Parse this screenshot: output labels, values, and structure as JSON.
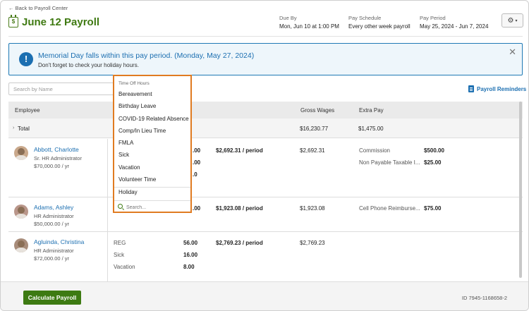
{
  "header": {
    "back_link": "← Back to Payroll Center",
    "title": "June 12 Payroll",
    "title_icon": "$",
    "due_by_label": "Due By",
    "due_by_value": "Mon, Jun 10 at 1:00 PM",
    "schedule_label": "Pay Schedule",
    "schedule_value": "Every other week payroll",
    "period_label": "Pay Period",
    "period_value": "May 25, 2024 - Jun 7, 2024",
    "gear_icon": "⚙",
    "caret": "▾"
  },
  "alert": {
    "icon": "!",
    "title": "Memorial Day falls within this pay period. (Monday, May 27, 2024)",
    "body": "Don't forget to check your holiday hours.",
    "close": "✕"
  },
  "toolbar": {
    "search_placeholder": "Search by Name",
    "reminders_label": "Payroll Reminders"
  },
  "table": {
    "headers": {
      "employee": "Employee",
      "gross_wages": "Gross Wages",
      "extra_pay": "Extra Pay"
    },
    "total": {
      "label": "Total",
      "toggle": "›",
      "gross": "$16,230.77",
      "extra": "$1,475.00"
    },
    "rows": [
      {
        "name": "Abbott, Charlotte",
        "role": "Sr. HR Administrator",
        "salary": "$70,000.00 / yr",
        "hours_peek": [
          ".00",
          ".00",
          ".0"
        ],
        "rate": "$2,692.31 / period",
        "gross": "$2,692.31",
        "extra": [
          {
            "label": "Commission",
            "amount": "$500.00"
          },
          {
            "label": "Non Payable Taxable I...",
            "amount": "$25.00"
          }
        ]
      },
      {
        "name": "Adams, Ashley",
        "role": "HR Administrator",
        "salary": "$50,000.00 / yr",
        "hours_peek": [
          ".00"
        ],
        "rate": "$1,923.08 / period",
        "gross": "$1,923.08",
        "extra": [
          {
            "label": "Cell Phone Reimburse...",
            "amount": "$75.00"
          }
        ]
      },
      {
        "name": "Agluinda, Christina",
        "role": "HR Administrator",
        "salary": "$72,000.00 / yr",
        "hours": [
          {
            "type": "REG",
            "value": "56.00"
          },
          {
            "type": "Sick",
            "value": "16.00"
          },
          {
            "type": "Vacation",
            "value": "8.00"
          }
        ],
        "rate": "$2,769.23 / period",
        "gross": "$2,769.23"
      }
    ]
  },
  "dropdown": {
    "header": "Time Off Hours",
    "items": [
      "Bereavement",
      "Birthday Leave",
      "COVID-19 Related Absence",
      "Comp/In Lieu Time",
      "FMLA",
      "Sick",
      "Vacation",
      "Volunteer Time",
      "Holiday"
    ],
    "search_placeholder": "Search..."
  },
  "footer": {
    "calculate_label": "Calculate Payroll",
    "id_text": "ID 7945-1168658-2"
  },
  "colors": {
    "brand_green": "#3d7a12",
    "link_blue": "#1c6fb1",
    "dropdown_border": "#e07b21"
  }
}
